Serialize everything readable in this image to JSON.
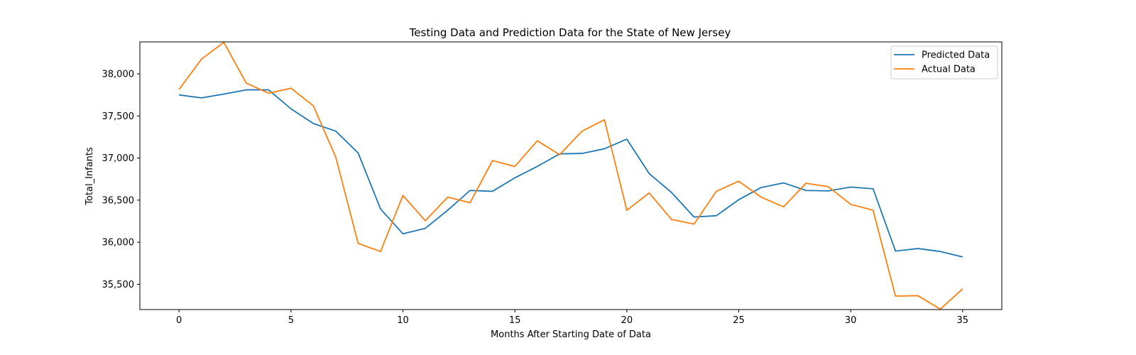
{
  "chart_data": {
    "type": "line",
    "title": "Testing Data and Prediction Data for the State of New Jersey",
    "xlabel": "Months After Starting Date of Data",
    "ylabel": "Total_Infants",
    "xlim": [
      -1.75,
      36.75
    ],
    "ylim": [
      35200,
      38380
    ],
    "xticks": [
      0,
      5,
      10,
      15,
      20,
      25,
      30,
      35
    ],
    "xtick_labels": [
      "0",
      "5",
      "10",
      "15",
      "20",
      "25",
      "30",
      "35"
    ],
    "yticks": [
      35500,
      36000,
      36500,
      37000,
      37500,
      38000
    ],
    "ytick_labels": [
      "35,500",
      "36,000",
      "36,500",
      "37,000",
      "37,500",
      "38,000"
    ],
    "grid": false,
    "legend_position": "top-right",
    "x": [
      0,
      1,
      2,
      3,
      4,
      5,
      6,
      7,
      8,
      9,
      10,
      11,
      12,
      13,
      14,
      15,
      16,
      17,
      18,
      19,
      20,
      21,
      22,
      23,
      24,
      25,
      26,
      27,
      28,
      29,
      30,
      31,
      32,
      33,
      34,
      35
    ],
    "series": [
      {
        "name": "Predicted Data",
        "color": "#1f77b4",
        "values": [
          37750,
          37715,
          37760,
          37810,
          37810,
          37585,
          37410,
          37320,
          37060,
          36395,
          36100,
          36165,
          36380,
          36615,
          36605,
          36765,
          36900,
          37050,
          37055,
          37110,
          37225,
          36815,
          36590,
          36300,
          36315,
          36505,
          36650,
          36705,
          36615,
          36610,
          36655,
          36635,
          35895,
          35925,
          35890,
          35825
        ]
      },
      {
        "name": "Actual Data",
        "color": "#ff7f0e",
        "values": [
          37815,
          38175,
          38375,
          37890,
          37770,
          37830,
          37620,
          37010,
          35985,
          35890,
          36555,
          36255,
          36535,
          36470,
          36970,
          36900,
          37205,
          37040,
          37320,
          37455,
          36380,
          36585,
          36270,
          36215,
          36605,
          36725,
          36535,
          36420,
          36700,
          36660,
          36450,
          36380,
          35360,
          35365,
          35205,
          35445
        ]
      }
    ]
  }
}
